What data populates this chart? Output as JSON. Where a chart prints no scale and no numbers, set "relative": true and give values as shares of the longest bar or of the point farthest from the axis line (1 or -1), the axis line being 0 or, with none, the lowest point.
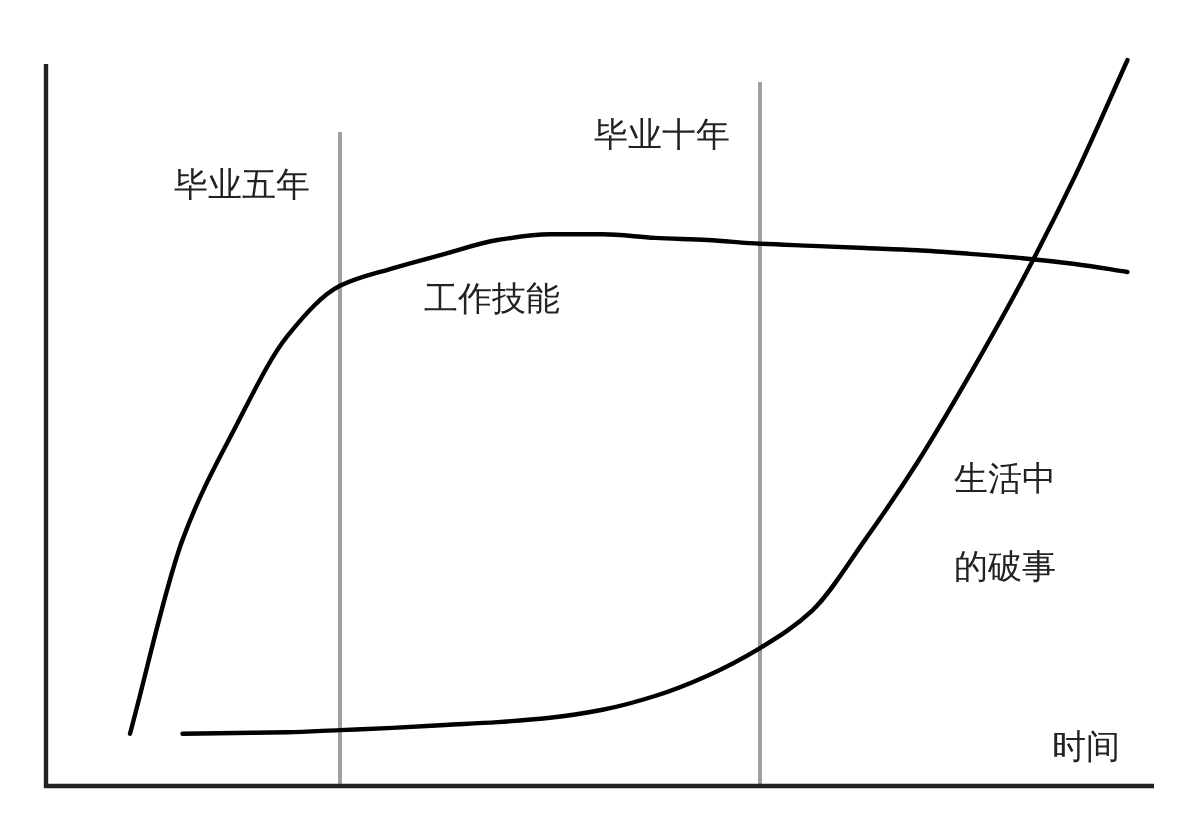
{
  "chart_data": {
    "type": "line",
    "relative": true,
    "xlabel": "时间",
    "line_style": "solid",
    "categories": [
      null,
      null,
      null,
      null,
      null,
      null,
      null,
      null,
      null,
      null,
      null,
      null,
      null,
      null,
      null,
      null,
      null,
      null,
      null,
      null
    ],
    "series": [
      {
        "name": "工作技能",
        "color": "#000000",
        "values": [
          0.072,
          0.339,
          0.493,
          0.62,
          0.689,
          0.713,
          0.733,
          0.752,
          0.76,
          0.76,
          0.755,
          0.752,
          0.747,
          0.744,
          0.741,
          0.738,
          0.733,
          0.727,
          0.719,
          0.708
        ]
      },
      {
        "name": "生活中的破事",
        "color": "#000000",
        "values": [
          null,
          0.072,
          0.073,
          0.074,
          0.077,
          0.08,
          0.084,
          0.088,
          0.094,
          0.105,
          0.124,
          0.152,
          0.19,
          0.242,
          0.339,
          0.446,
          0.567,
          0.697,
          0.84,
          1.0
        ]
      }
    ],
    "annotations": [
      "毕业五年",
      "毕业十年"
    ]
  }
}
